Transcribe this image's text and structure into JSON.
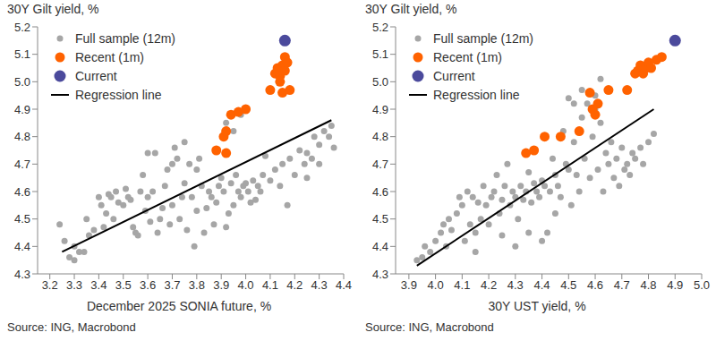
{
  "chart_data": [
    {
      "type": "scatter",
      "y_label": "30Y Gilt yield, %",
      "x_label": "December 2025 SONIA future, %",
      "source": "Source: ING, Macrobond",
      "xlim": [
        3.15,
        4.4
      ],
      "xticks": [
        3.2,
        3.3,
        3.4,
        3.5,
        3.6,
        3.7,
        3.8,
        3.9,
        {
          "value": 4,
          "label": "4.0"
        },
        4.1,
        4.2,
        4.3,
        4.4
      ],
      "ylim": [
        4.3,
        5.2
      ],
      "yticks": [
        4.3,
        4.4,
        4.5,
        4.6,
        4.7,
        4.8,
        4.9,
        {
          "value": 5,
          "label": "5.0"
        },
        5.1,
        5.2
      ],
      "grid": false,
      "legend": "top-left",
      "series": [
        {
          "name": "Full sample (12m)",
          "color": "#a6a6a6",
          "marker": "circle",
          "x": [
            3.24,
            3.26,
            3.28,
            3.3,
            3.3,
            3.32,
            3.34,
            3.35,
            3.36,
            3.38,
            3.4,
            3.41,
            3.42,
            3.43,
            3.44,
            3.45,
            3.46,
            3.47,
            3.48,
            3.5,
            3.51,
            3.52,
            3.53,
            3.54,
            3.55,
            3.56,
            3.57,
            3.58,
            3.59,
            3.6,
            3.6,
            3.61,
            3.62,
            3.63,
            3.64,
            3.65,
            3.66,
            3.67,
            3.68,
            3.69,
            3.7,
            3.7,
            3.71,
            3.72,
            3.73,
            3.74,
            3.75,
            3.75,
            3.76,
            3.77,
            3.78,
            3.79,
            3.8,
            3.8,
            3.81,
            3.82,
            3.83,
            3.84,
            3.85,
            3.86,
            3.87,
            3.88,
            3.89,
            3.9,
            3.91,
            3.92,
            3.93,
            3.94,
            3.95,
            3.96,
            3.97,
            3.98,
            3.99,
            4.0,
            4.01,
            4.02,
            4.03,
            4.04,
            4.05,
            4.06,
            4.07,
            4.08,
            4.1,
            4.12,
            4.14,
            4.15,
            4.17,
            4.18,
            4.2,
            4.22,
            4.24,
            4.25,
            4.27,
            4.28,
            4.3,
            4.32,
            4.34,
            4.35,
            4.36,
            3.98,
            3.92,
            4.0,
            3.95,
            4.25,
            4.3
          ],
          "values": [
            4.48,
            4.42,
            4.36,
            4.35,
            4.4,
            4.38,
            4.38,
            4.5,
            4.44,
            4.46,
            4.58,
            4.55,
            4.47,
            4.52,
            4.59,
            4.58,
            4.5,
            4.6,
            4.56,
            4.55,
            4.61,
            4.58,
            4.57,
            4.47,
            4.45,
            4.44,
            4.6,
            4.66,
            4.53,
            4.74,
            4.58,
            4.49,
            4.6,
            4.74,
            4.45,
            4.5,
            4.54,
            4.62,
            4.68,
            4.48,
            4.7,
            4.55,
            4.76,
            4.72,
            4.5,
            4.58,
            4.78,
            4.63,
            4.46,
            4.7,
            4.58,
            4.4,
            4.53,
            4.68,
            4.72,
            4.62,
            4.45,
            4.54,
            4.6,
            4.58,
            4.48,
            4.56,
            4.62,
            4.65,
            4.6,
            4.47,
            4.52,
            4.63,
            4.55,
            4.66,
            4.6,
            4.58,
            4.62,
            4.63,
            4.6,
            4.56,
            4.64,
            4.57,
            4.62,
            4.6,
            4.66,
            4.73,
            4.64,
            4.68,
            4.62,
            4.7,
            4.55,
            4.72,
            4.66,
            4.75,
            4.7,
            4.74,
            4.72,
            4.8,
            4.77,
            4.82,
            4.8,
            4.84,
            4.76,
            4.88,
            4.85,
            4.9,
            4.82,
            4.65,
            4.7
          ]
        },
        {
          "name": "Recent (1m)",
          "color": "#ff6200",
          "marker": "circle",
          "x": [
            3.88,
            3.91,
            3.92,
            3.92,
            3.94,
            3.97,
            4.0,
            4.1,
            4.12,
            4.13,
            4.14,
            4.15,
            4.16,
            4.16,
            4.17,
            4.15,
            4.18,
            4.14,
            4.13
          ],
          "values": [
            4.75,
            4.8,
            4.82,
            4.74,
            4.88,
            4.89,
            4.9,
            4.97,
            5.03,
            5.05,
            5.02,
            5.06,
            5.04,
            5.09,
            5.07,
            4.96,
            4.97,
            5.0,
            5.04
          ]
        },
        {
          "name": "Current",
          "color": "#4b4a9c",
          "marker": "circle",
          "x": [
            4.16
          ],
          "values": [
            5.15
          ]
        },
        {
          "name": "Regression line",
          "type": "line",
          "line_style": "solid",
          "color": "#000000",
          "x": [
            3.25,
            4.35
          ],
          "values": [
            4.38,
            4.86
          ]
        }
      ]
    },
    {
      "type": "scatter",
      "y_label": "30Y Gilt yield, %",
      "x_label": "30Y UST yield, %",
      "source": "Source: ING, Macrobond",
      "xlim": [
        3.85,
        5.0
      ],
      "xticks": [
        3.9,
        {
          "value": 4,
          "label": "4.0"
        },
        4.1,
        4.2,
        4.3,
        4.4,
        4.5,
        4.6,
        4.7,
        4.8,
        4.9,
        {
          "value": 5,
          "label": "5.0"
        }
      ],
      "ylim": [
        4.3,
        5.2
      ],
      "yticks": [
        4.3,
        4.4,
        4.5,
        4.6,
        4.7,
        4.8,
        4.9,
        {
          "value": 5,
          "label": "5.0"
        },
        5.1,
        5.2
      ],
      "grid": false,
      "legend": "top-left",
      "series": [
        {
          "name": "Full sample (12m)",
          "color": "#a6a6a6",
          "marker": "circle",
          "x": [
            3.93,
            3.95,
            3.96,
            3.98,
            4.0,
            4.02,
            4.03,
            4.04,
            4.05,
            4.06,
            4.08,
            4.09,
            4.1,
            4.11,
            4.12,
            4.13,
            4.14,
            4.15,
            4.16,
            4.17,
            4.18,
            4.19,
            4.2,
            4.21,
            4.22,
            4.23,
            4.24,
            4.25,
            4.26,
            4.27,
            4.28,
            4.29,
            4.3,
            4.31,
            4.32,
            4.33,
            4.34,
            4.35,
            4.36,
            4.37,
            4.38,
            4.39,
            4.4,
            4.41,
            4.42,
            4.43,
            4.44,
            4.45,
            4.46,
            4.47,
            4.48,
            4.49,
            4.5,
            4.51,
            4.52,
            4.53,
            4.54,
            4.55,
            4.56,
            4.57,
            4.58,
            4.59,
            4.6,
            4.6,
            4.61,
            4.62,
            4.63,
            4.64,
            4.65,
            4.66,
            4.67,
            4.68,
            4.69,
            4.7,
            4.71,
            4.72,
            4.73,
            4.74,
            4.75,
            4.77,
            4.78,
            4.8,
            4.82,
            4.45,
            4.4,
            4.35,
            4.3,
            4.25,
            4.15,
            4.5,
            4.55,
            4.62,
            4.52
          ],
          "values": [
            4.35,
            4.36,
            4.4,
            4.38,
            4.42,
            4.45,
            4.48,
            4.4,
            4.5,
            4.46,
            4.52,
            4.58,
            4.55,
            4.42,
            4.6,
            4.48,
            4.58,
            4.45,
            4.56,
            4.5,
            4.62,
            4.55,
            4.48,
            4.58,
            4.6,
            4.66,
            4.52,
            4.57,
            4.62,
            4.7,
            4.55,
            4.6,
            4.58,
            4.5,
            4.62,
            4.57,
            4.6,
            4.67,
            4.56,
            4.63,
            4.6,
            4.58,
            4.64,
            4.62,
            4.45,
            4.6,
            4.72,
            4.66,
            4.62,
            4.58,
            4.82,
            4.7,
            4.68,
            4.55,
            4.78,
            4.66,
            4.6,
            4.87,
            4.72,
            4.92,
            4.65,
            4.8,
            4.95,
            4.9,
            4.68,
            4.85,
            4.6,
            4.74,
            4.7,
            4.78,
            4.65,
            4.72,
            4.62,
            4.76,
            4.68,
            4.7,
            4.66,
            4.74,
            4.72,
            4.76,
            4.7,
            4.78,
            4.81,
            4.52,
            4.42,
            4.45,
            4.4,
            4.44,
            4.38,
            4.94,
            4.97,
            5.01,
            4.92
          ]
        },
        {
          "name": "Recent (1m)",
          "color": "#ff6200",
          "marker": "circle",
          "x": [
            4.34,
            4.37,
            4.41,
            4.47,
            4.54,
            4.58,
            4.59,
            4.6,
            4.61,
            4.65,
            4.72,
            4.75,
            4.76,
            4.77,
            4.78,
            4.79,
            4.8,
            4.81,
            4.83,
            4.85
          ],
          "values": [
            4.74,
            4.75,
            4.8,
            4.8,
            4.82,
            4.96,
            4.9,
            4.88,
            4.92,
            4.97,
            4.97,
            5.03,
            5.04,
            5.06,
            5.03,
            5.05,
            5.07,
            5.05,
            5.08,
            5.09
          ]
        },
        {
          "name": "Current",
          "color": "#4b4a9c",
          "marker": "circle",
          "x": [
            4.9
          ],
          "values": [
            5.15
          ]
        },
        {
          "name": "Regression line",
          "type": "line",
          "line_style": "solid",
          "color": "#000000",
          "x": [
            3.93,
            4.82
          ],
          "values": [
            4.33,
            4.9
          ]
        }
      ]
    }
  ]
}
